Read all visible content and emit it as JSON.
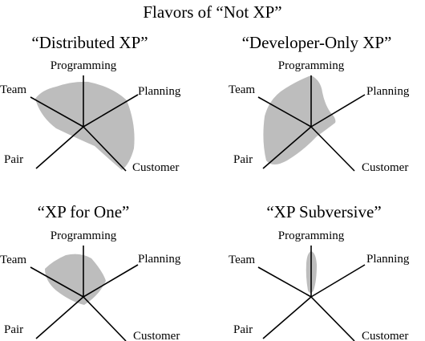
{
  "title": "Flavors of “Not XP”",
  "colors": {
    "shape": "#bdbdbd",
    "lines": "#000000",
    "background": "#ffffff"
  },
  "axes": [
    "Programming",
    "Planning",
    "Customer",
    "Pair",
    "Team"
  ],
  "panels": [
    {
      "title": "“Distributed XP”",
      "labels": [
        "Programming",
        "Planning",
        "Customer",
        "Pair",
        "Team"
      ]
    },
    {
      "title": "“Developer-Only XP”",
      "labels": [
        "Programming",
        "Planning",
        "Customer",
        "Pair",
        "Team"
      ]
    },
    {
      "title": "“XP for One”",
      "labels": [
        "Programming",
        "Planning",
        "Customer",
        "Pair",
        "Team"
      ]
    },
    {
      "title": "“XP Subversive”",
      "labels": [
        "Programming",
        "Planning",
        "Customer",
        "Pair",
        "Team"
      ]
    }
  ]
}
